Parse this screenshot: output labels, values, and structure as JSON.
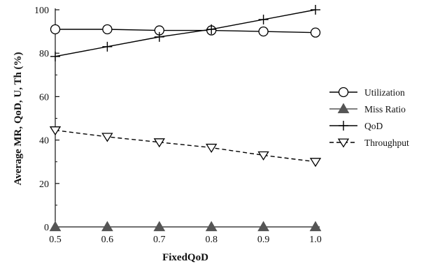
{
  "chart_data": {
    "type": "line",
    "title": "",
    "xlabel": "FixedQoD",
    "ylabel": "Average MR, QoD, U, Th (%)",
    "x": [
      0.5,
      0.6,
      0.7,
      0.8,
      0.9,
      1.0
    ],
    "x_tick_labels": [
      "0.5",
      "0.6",
      "0.7",
      "0.8",
      "0.9",
      "1.0"
    ],
    "xlim": [
      0.5,
      1.0
    ],
    "ylim": [
      0,
      100
    ],
    "y_ticks": [
      0,
      20,
      40,
      60,
      80,
      100
    ],
    "grid": false,
    "legend_position": "right",
    "series": [
      {
        "name": "Utilization",
        "values": [
          91,
          91,
          90.5,
          90.5,
          90,
          89.5
        ],
        "marker": "circle-open",
        "line_style": "solid",
        "color": "#000000"
      },
      {
        "name": "Miss Ratio",
        "values": [
          0,
          0,
          0,
          0,
          0,
          0
        ],
        "marker": "triangle-filled",
        "line_style": "solid",
        "color": "#555555"
      },
      {
        "name": "QoD",
        "values": [
          78.5,
          83,
          87.5,
          91,
          95.5,
          100
        ],
        "marker": "plus",
        "line_style": "solid",
        "color": "#000000"
      },
      {
        "name": "Throughput",
        "values": [
          44.5,
          41.5,
          39,
          36.5,
          33,
          30
        ],
        "marker": "triangle-down-open",
        "line_style": "dashed",
        "color": "#000000"
      }
    ]
  }
}
